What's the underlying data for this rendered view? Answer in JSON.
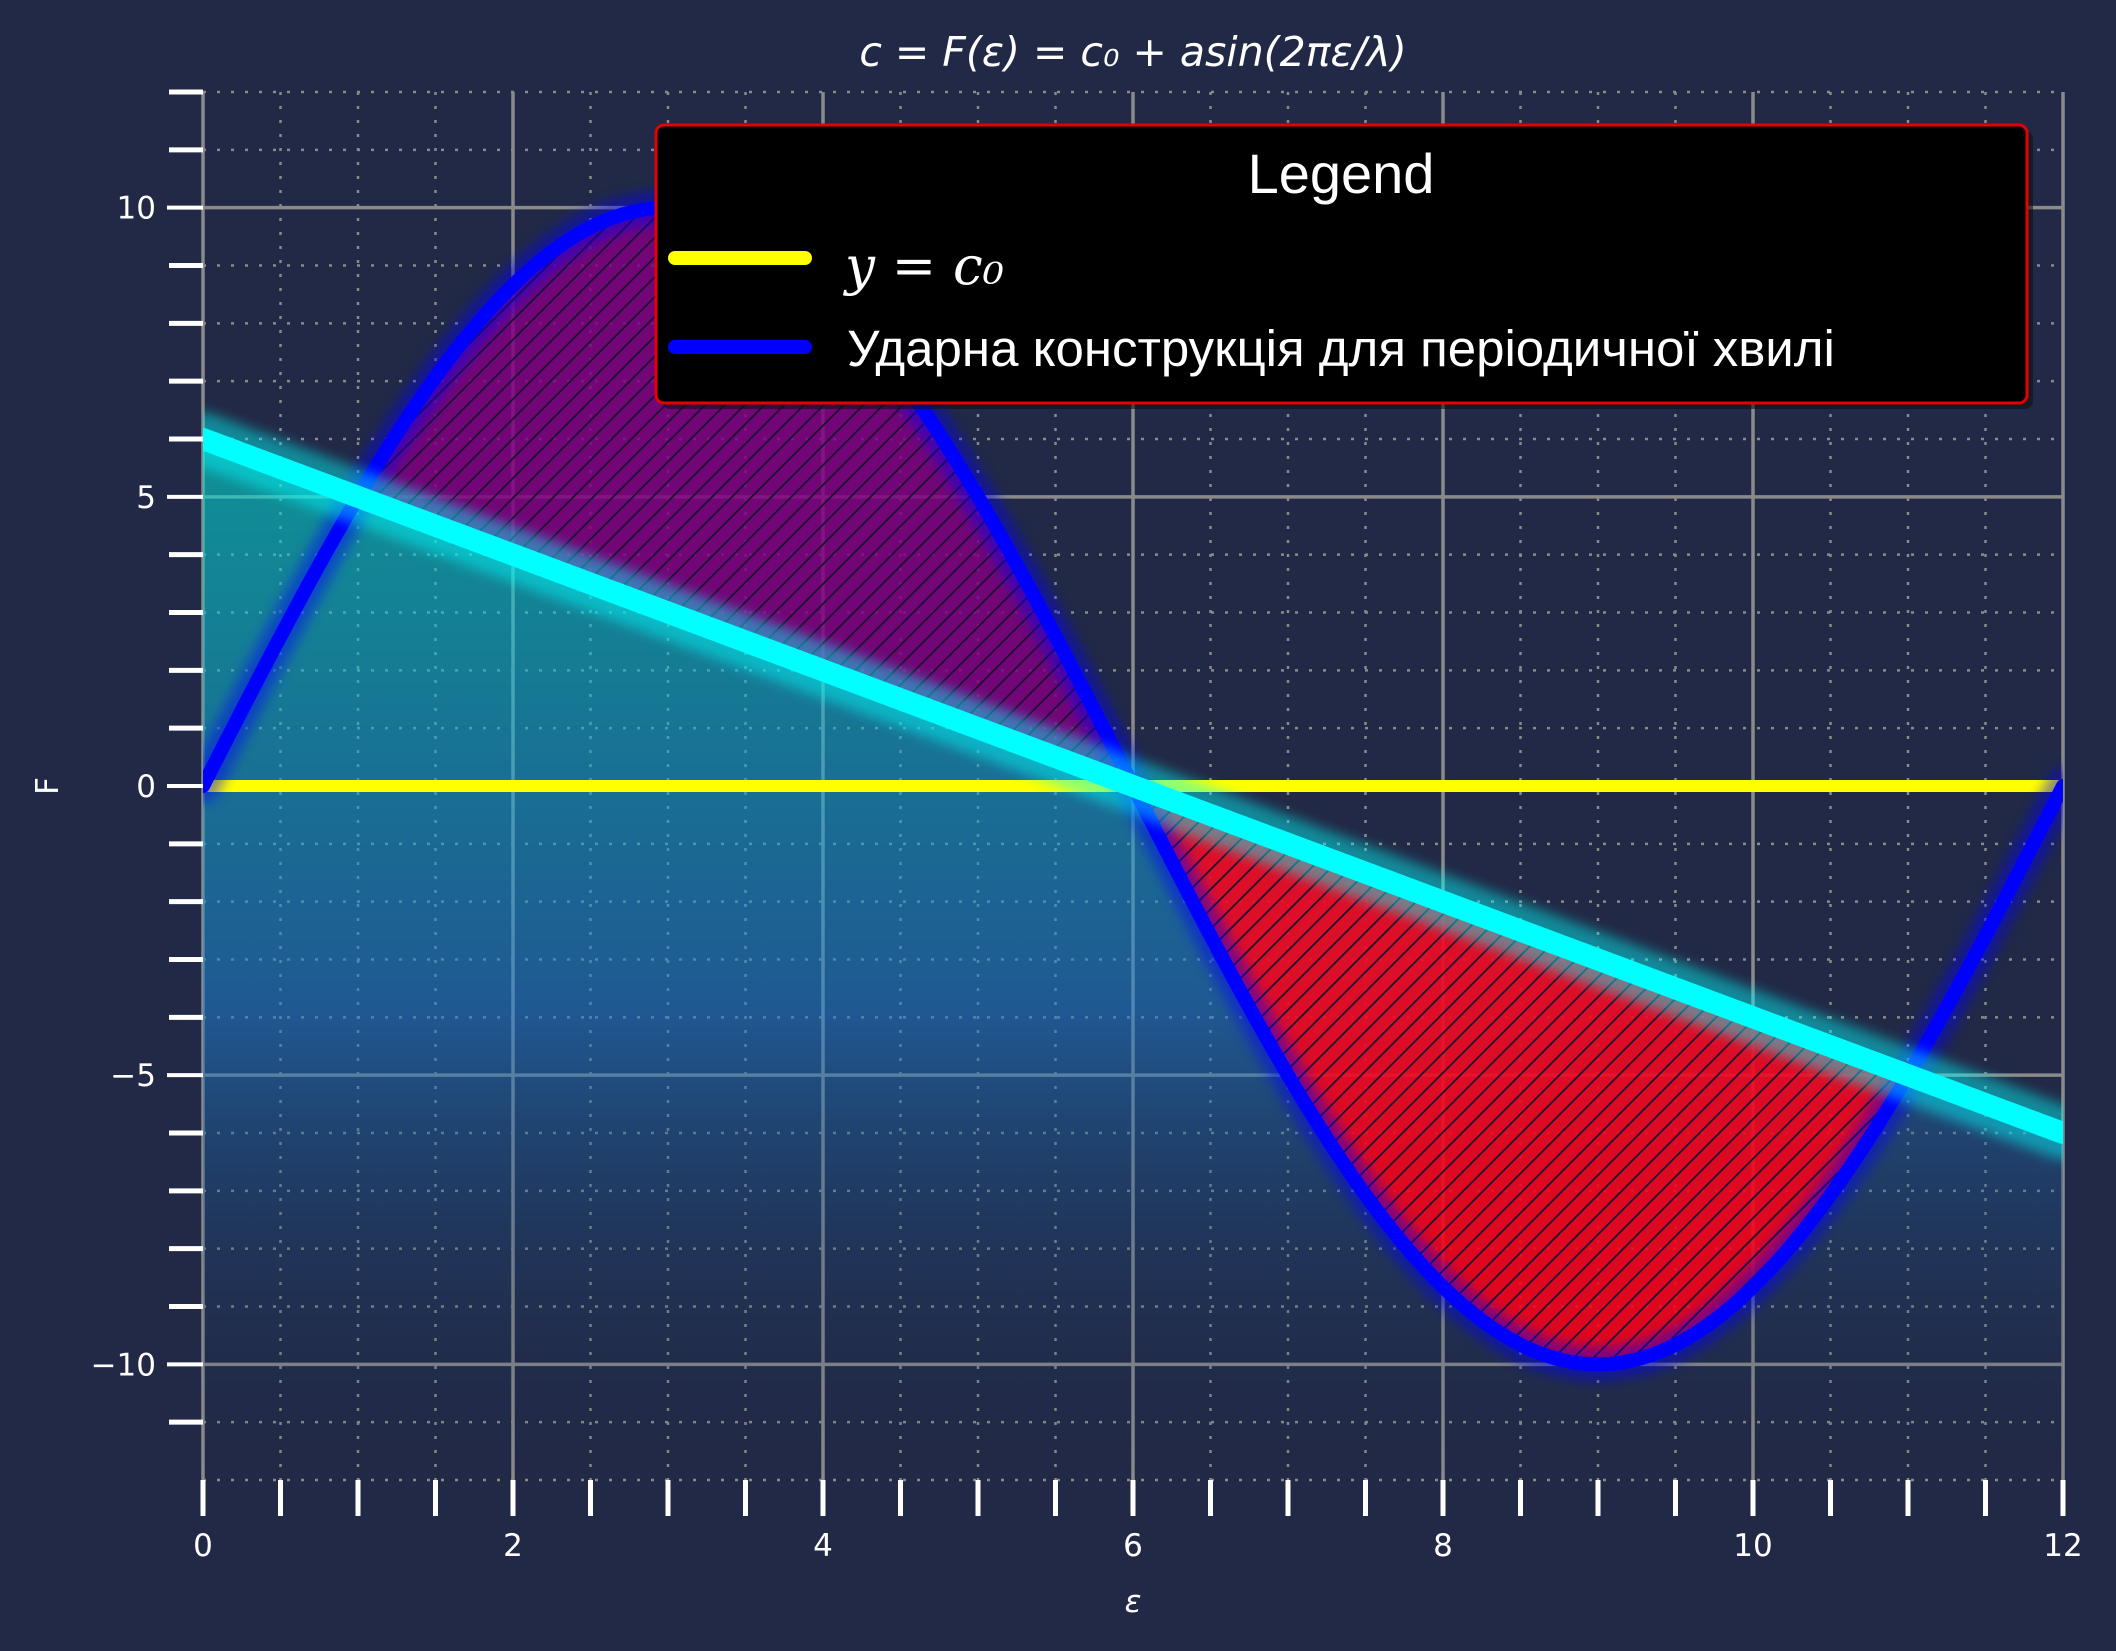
{
  "chart_data": {
    "type": "line",
    "title": "c = F(ε) = c₀ + asin(2πε/λ)",
    "xlabel": "ε",
    "ylabel": "F",
    "xlim": [
      0,
      12
    ],
    "ylim": [
      -12,
      12
    ],
    "x_ticks": [
      "0",
      "2",
      "4",
      "6",
      "8",
      "10",
      "12"
    ],
    "y_ticks": [
      "10",
      "5",
      "0",
      "−5",
      "−10"
    ],
    "grid": true,
    "legend": {
      "title": "Legend",
      "placement": "top-right",
      "entries": [
        "y = c₀",
        "Ударна конструкція для періодичної хвилі"
      ]
    },
    "series": [
      {
        "name": "y = c₀",
        "function": "constant",
        "c0": 0,
        "color": "#ffff00"
      },
      {
        "name": "Ударна конструкція для періодичної хвилі",
        "function": "sine",
        "c0": 0,
        "amplitude": 10,
        "wavelength": 12,
        "color": "#0000ff"
      },
      {
        "function": "linear",
        "intercept": 6,
        "slope": -1,
        "color": "#00ffff"
      }
    ],
    "fills": {
      "above_line": "#800080",
      "below_line": "#ff0015"
    }
  }
}
